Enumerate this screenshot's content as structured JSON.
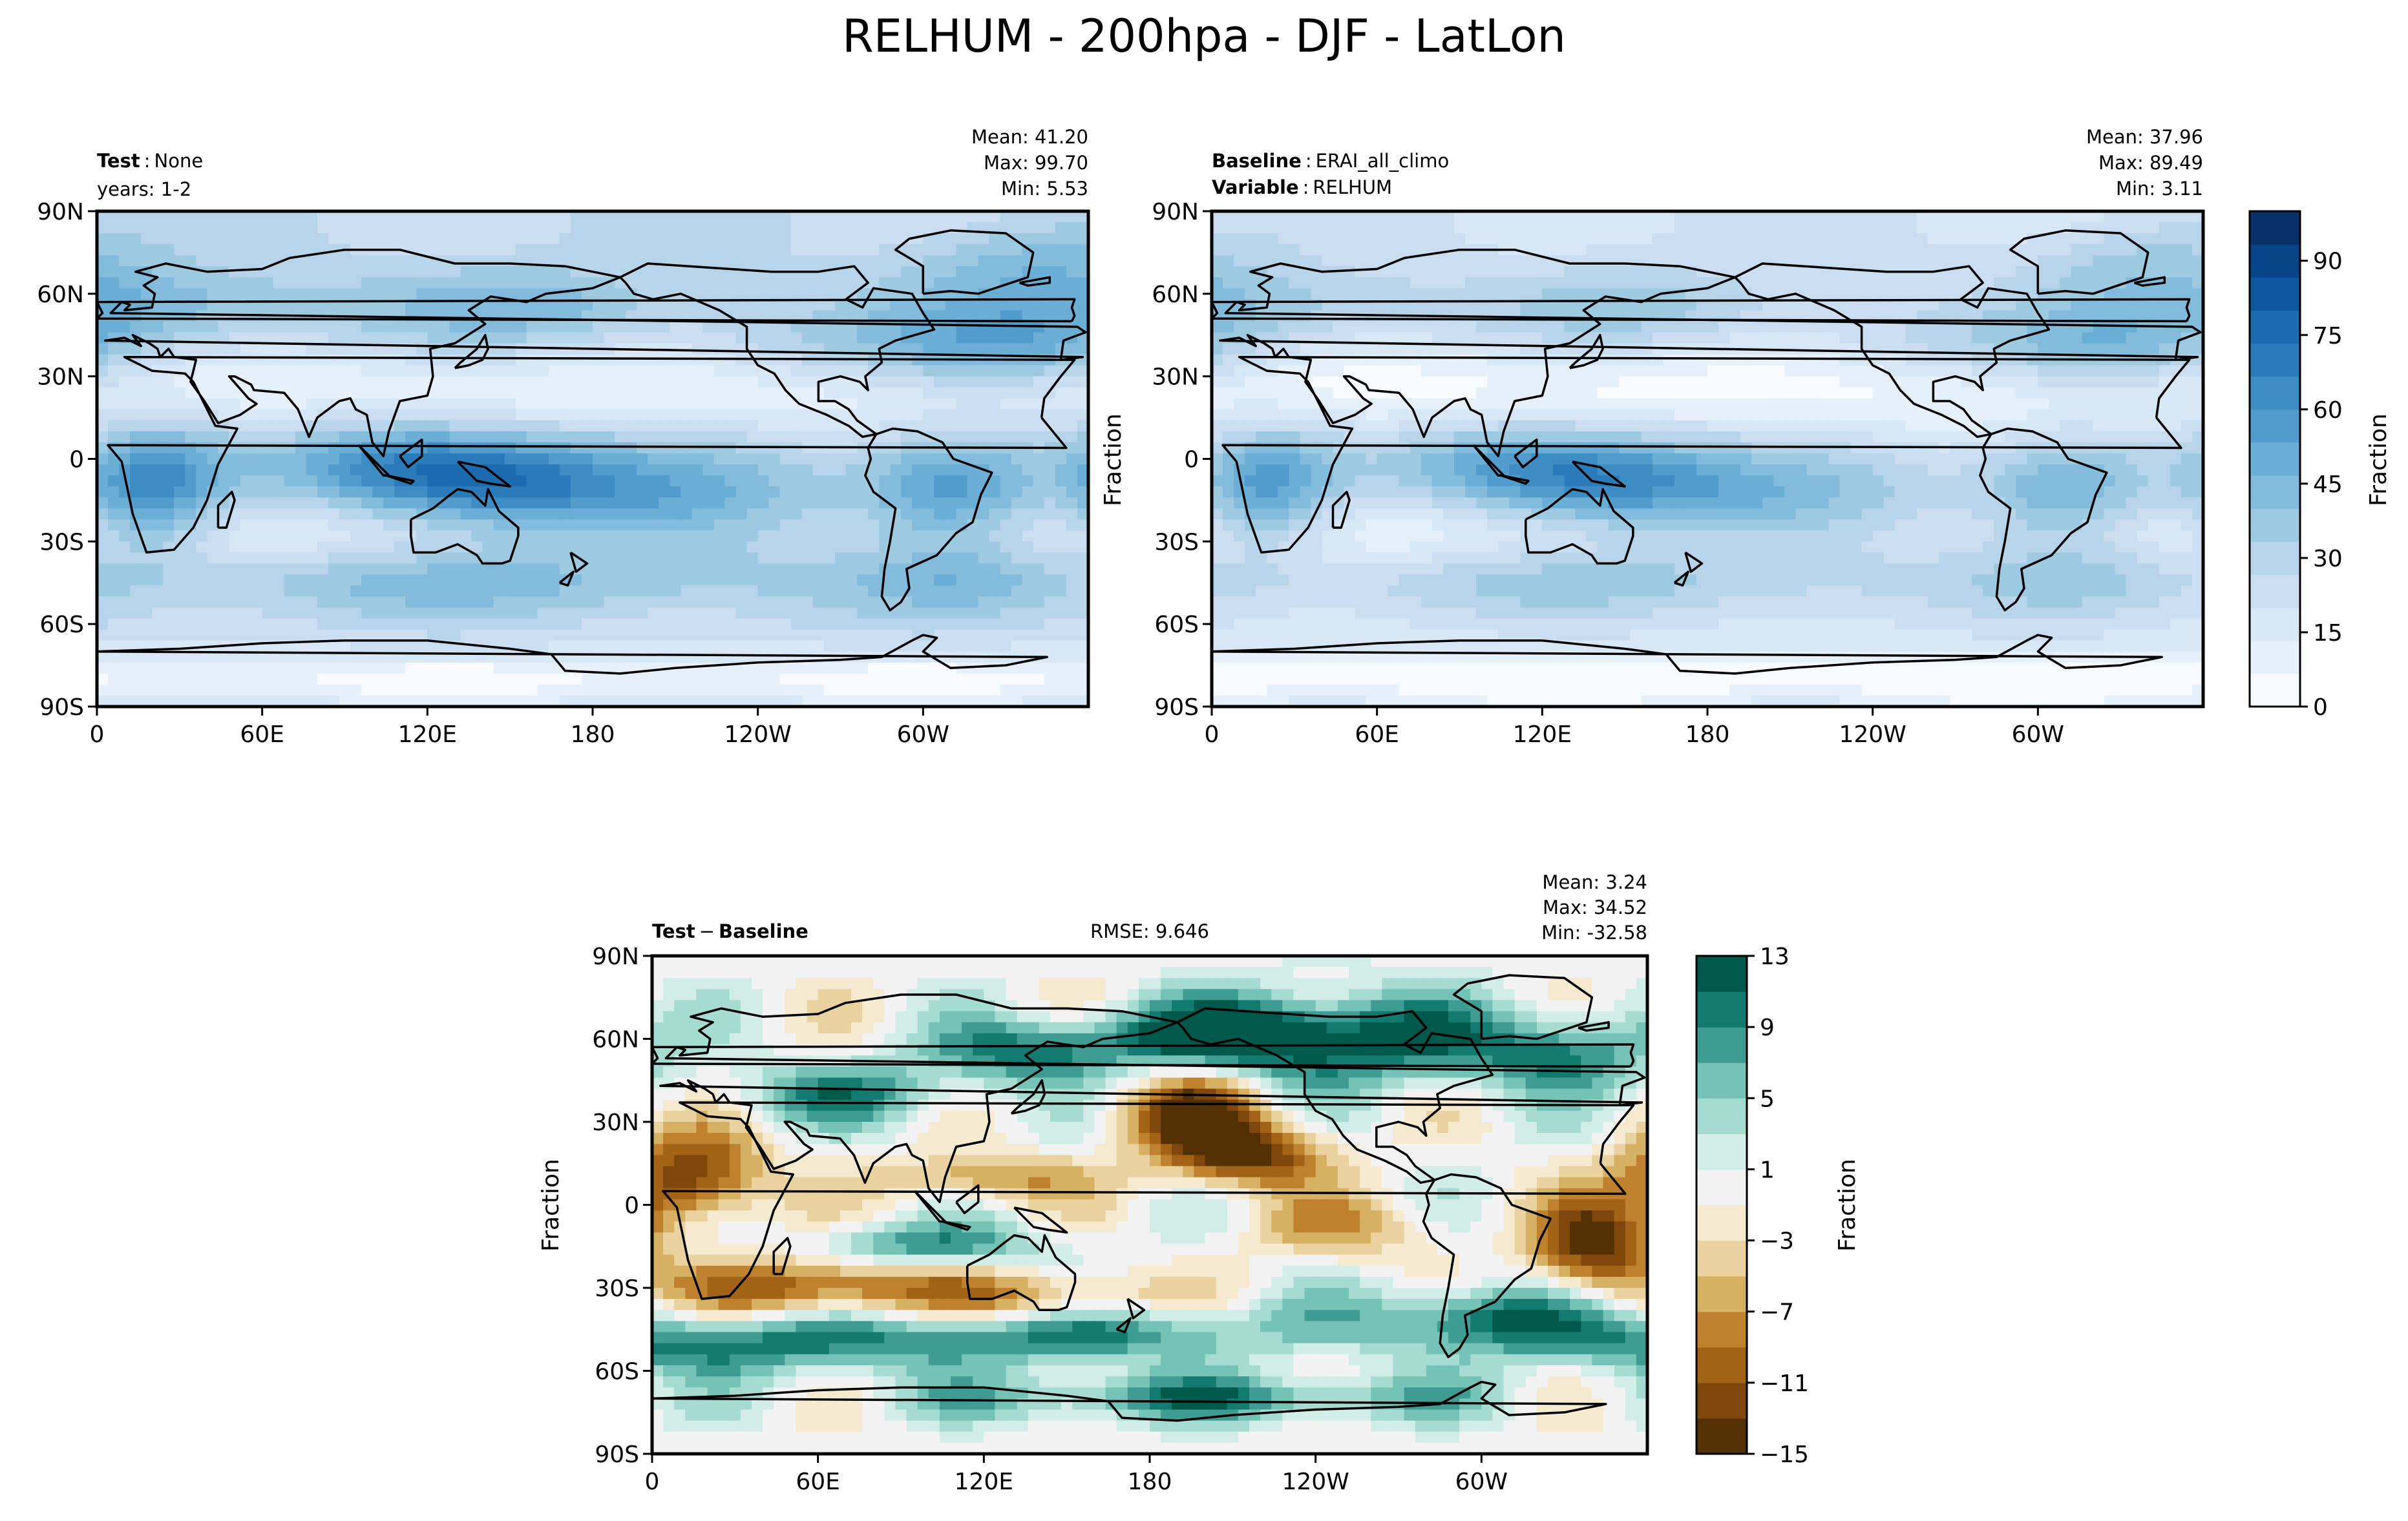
{
  "figure_title": "RELHUM - 200hpa - DJF - LatLon",
  "chart_data": [
    {
      "type": "heatmap",
      "name": "test",
      "label_bold": "Test",
      "label_value": "None",
      "subtitle": "years: 1-2",
      "stats": {
        "mean": "Mean: 41.20",
        "max": "Max: 99.70",
        "min": "Min:  5.53"
      },
      "ylabel": "",
      "x_ticks": [
        "0",
        "60E",
        "120E",
        "180",
        "120W",
        "60W"
      ],
      "x_tick_values": [
        0,
        60,
        120,
        180,
        240,
        300
      ],
      "y_ticks": [
        "90N",
        "60N",
        "30N",
        "0",
        "30S",
        "60S",
        "90S"
      ],
      "y_tick_values": [
        90,
        60,
        30,
        0,
        -30,
        -60,
        -90
      ],
      "xlim": [
        0,
        360
      ],
      "ylim": [
        -90,
        90
      ]
    },
    {
      "type": "heatmap",
      "name": "baseline",
      "label_bold": "Baseline",
      "label_value": "ERAI_all_climo",
      "label2_bold": "Variable",
      "label2_value": "RELHUM",
      "stats": {
        "mean": "Mean: 37.96",
        "max": "Max: 89.49",
        "min": "Min:  3.11"
      },
      "ylabel": "Fraction",
      "x_ticks": [
        "0",
        "60E",
        "120E",
        "180",
        "120W",
        "60W"
      ],
      "x_tick_values": [
        0,
        60,
        120,
        180,
        240,
        300
      ],
      "y_ticks": [
        "90N",
        "60N",
        "30N",
        "0",
        "30S",
        "60S",
        "90S"
      ],
      "y_tick_values": [
        90,
        60,
        30,
        0,
        -30,
        -60,
        -90
      ],
      "xlim": [
        0,
        360
      ],
      "ylim": [
        -90,
        90
      ],
      "colorbar": {
        "label": "Fraction",
        "ticks": [
          "0",
          "15",
          "30",
          "45",
          "60",
          "75",
          "90"
        ],
        "tick_values": [
          0,
          15,
          30,
          45,
          60,
          75,
          90
        ],
        "range": [
          0,
          100
        ],
        "colors": [
          "#f7fbff",
          "#e6f0fa",
          "#d8e7f5",
          "#cbdef1",
          "#b7d4ea",
          "#9ecae1",
          "#82bbdb",
          "#6aaed6",
          "#519ccc",
          "#3d8dc4",
          "#2b7bba",
          "#1c6aaf",
          "#0d57a1",
          "#084488",
          "#08306b"
        ]
      }
    },
    {
      "type": "heatmap",
      "name": "difference",
      "label_bold_a": "Test",
      "label_sep": "−",
      "label_bold_b": "Baseline",
      "rmse": "RMSE: 9.646",
      "stats": {
        "mean": "Mean:  3.24",
        "max": "Max: 34.52",
        "min": "Min: -32.58"
      },
      "ylabel": "Fraction",
      "x_ticks": [
        "0",
        "60E",
        "120E",
        "180",
        "120W",
        "60W"
      ],
      "x_tick_values": [
        0,
        60,
        120,
        180,
        240,
        300
      ],
      "y_ticks": [
        "90N",
        "60N",
        "30N",
        "0",
        "30S",
        "60S",
        "90S"
      ],
      "y_tick_values": [
        90,
        60,
        30,
        0,
        -30,
        -60,
        -90
      ],
      "xlim": [
        0,
        360
      ],
      "ylim": [
        -90,
        90
      ],
      "colorbar": {
        "label": "Fraction",
        "ticks": [
          "13",
          "9",
          "5",
          "1",
          "−3",
          "−7",
          "−11",
          "−15"
        ],
        "tick_values": [
          13,
          9,
          5,
          1,
          -3,
          -7,
          -11,
          -15
        ],
        "range": [
          -15,
          13
        ],
        "colors": [
          "#543005",
          "#7f470b",
          "#a36317",
          "#bf812d",
          "#d6b163",
          "#e9d2a0",
          "#f5ead0",
          "#f2f2f2",
          "#d2ede8",
          "#a6dbd2",
          "#74c3b6",
          "#3f9c92",
          "#137a6f",
          "#01594c"
        ]
      }
    }
  ],
  "map_colors": {
    "coast": "#000000",
    "frame": "#000000"
  }
}
